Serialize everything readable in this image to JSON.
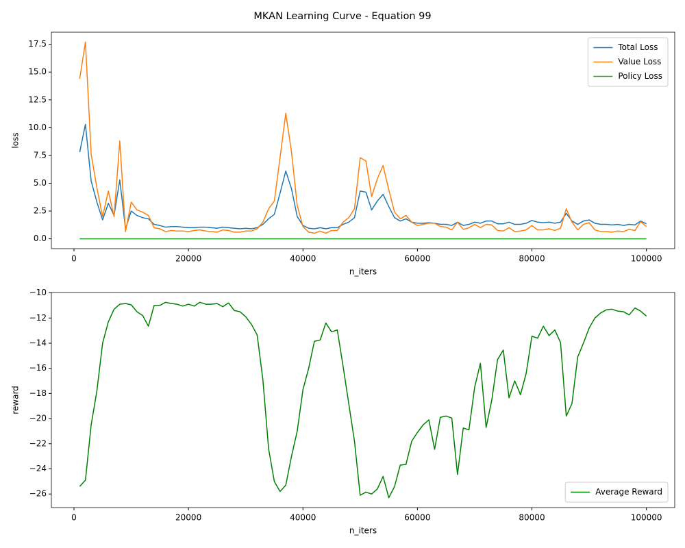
{
  "title": "MKAN Learning Curve - Equation 99",
  "chart_data": [
    {
      "type": "line",
      "xlabel": "n_iters",
      "ylabel": "loss",
      "x": [
        1000,
        2000,
        3000,
        4000,
        5000,
        6000,
        7000,
        8000,
        9000,
        10000,
        11000,
        12000,
        13000,
        14000,
        15000,
        16000,
        17000,
        18000,
        19000,
        20000,
        21000,
        22000,
        23000,
        24000,
        25000,
        26000,
        27000,
        28000,
        29000,
        30000,
        31000,
        32000,
        33000,
        34000,
        35000,
        36000,
        37000,
        38000,
        39000,
        40000,
        41000,
        42000,
        43000,
        44000,
        45000,
        46000,
        47000,
        48000,
        49000,
        50000,
        51000,
        52000,
        53000,
        54000,
        55000,
        56000,
        57000,
        58000,
        59000,
        60000,
        61000,
        62000,
        63000,
        64000,
        65000,
        66000,
        67000,
        68000,
        69000,
        70000,
        71000,
        72000,
        73000,
        74000,
        75000,
        76000,
        77000,
        78000,
        79000,
        80000,
        81000,
        82000,
        83000,
        84000,
        85000,
        86000,
        87000,
        88000,
        89000,
        90000,
        91000,
        92000,
        93000,
        94000,
        95000,
        96000,
        97000,
        98000,
        99000,
        100000
      ],
      "series": [
        {
          "name": "Total Loss",
          "color": "#1f77b4",
          "values": [
            7.8,
            10.3,
            5.2,
            3.3,
            1.7,
            3.2,
            2.1,
            5.3,
            0.9,
            2.5,
            2.1,
            1.9,
            1.8,
            1.3,
            1.2,
            1.05,
            1.1,
            1.1,
            1.05,
            1.0,
            1.0,
            1.05,
            1.05,
            1.0,
            0.95,
            1.05,
            1.0,
            0.95,
            0.9,
            0.95,
            0.9,
            1.0,
            1.3,
            1.8,
            2.2,
            4.1,
            6.1,
            4.5,
            2.0,
            1.2,
            0.95,
            0.9,
            1.0,
            0.9,
            1.0,
            1.0,
            1.3,
            1.5,
            1.9,
            4.3,
            4.2,
            2.6,
            3.4,
            4.0,
            2.9,
            1.9,
            1.6,
            1.8,
            1.5,
            1.4,
            1.4,
            1.45,
            1.4,
            1.3,
            1.3,
            1.2,
            1.5,
            1.2,
            1.3,
            1.5,
            1.4,
            1.6,
            1.6,
            1.35,
            1.35,
            1.5,
            1.3,
            1.3,
            1.4,
            1.65,
            1.5,
            1.45,
            1.5,
            1.4,
            1.5,
            2.3,
            1.6,
            1.3,
            1.6,
            1.7,
            1.4,
            1.3,
            1.3,
            1.25,
            1.3,
            1.2,
            1.3,
            1.25,
            1.6,
            1.35
          ]
        },
        {
          "name": "Value Loss",
          "color": "#ff7f0e",
          "values": [
            14.4,
            17.7,
            7.6,
            4.6,
            2.0,
            4.3,
            2.0,
            8.8,
            0.65,
            3.3,
            2.6,
            2.4,
            2.1,
            1.0,
            0.9,
            0.65,
            0.75,
            0.7,
            0.7,
            0.65,
            0.75,
            0.8,
            0.7,
            0.65,
            0.6,
            0.8,
            0.75,
            0.6,
            0.6,
            0.7,
            0.7,
            0.9,
            1.5,
            2.7,
            3.4,
            7.3,
            11.3,
            7.8,
            3.0,
            1.1,
            0.6,
            0.5,
            0.7,
            0.5,
            0.75,
            0.75,
            1.5,
            1.9,
            2.7,
            7.3,
            7.0,
            3.8,
            5.4,
            6.6,
            4.4,
            2.4,
            1.8,
            2.1,
            1.5,
            1.2,
            1.3,
            1.4,
            1.4,
            1.1,
            1.05,
            0.8,
            1.5,
            0.85,
            1.0,
            1.3,
            1.0,
            1.3,
            1.25,
            0.75,
            0.7,
            1.0,
            0.65,
            0.7,
            0.8,
            1.2,
            0.8,
            0.8,
            0.9,
            0.75,
            0.95,
            2.7,
            1.5,
            0.8,
            1.3,
            1.45,
            0.8,
            0.65,
            0.65,
            0.6,
            0.7,
            0.65,
            0.85,
            0.75,
            1.55,
            1.1
          ]
        },
        {
          "name": "Policy Loss",
          "color": "#2ca02c",
          "values": [
            0,
            0,
            0,
            0,
            0,
            0,
            0,
            0,
            0,
            0,
            0,
            0,
            0,
            0,
            0,
            0,
            0,
            0,
            0,
            0,
            0,
            0,
            0,
            0,
            0,
            0,
            0,
            0,
            0,
            0,
            0,
            0,
            0,
            0,
            0,
            0,
            0,
            0,
            0,
            0,
            0,
            0,
            0,
            0,
            0,
            0,
            0,
            0,
            0,
            0,
            0,
            0,
            0,
            0,
            0,
            0,
            0,
            0,
            0,
            0,
            0,
            0,
            0,
            0,
            0,
            0,
            0,
            0,
            0,
            0,
            0,
            0,
            0,
            0,
            0,
            0,
            0,
            0,
            0,
            0,
            0,
            0,
            0,
            0,
            0,
            0,
            0,
            0,
            0,
            0,
            0,
            0,
            0,
            0,
            0,
            0,
            0,
            0,
            0,
            0
          ]
        }
      ],
      "xlim": [
        -3950,
        104950
      ],
      "xticks": [
        0,
        20000,
        40000,
        60000,
        80000,
        100000
      ],
      "ylim": [
        -0.885,
        18.585
      ],
      "yticks": [
        {
          "value": 0,
          "label": "0.0"
        },
        2.5,
        {
          "value": 5,
          "label": "5.0"
        },
        7.5,
        {
          "value": 10,
          "label": "10.0"
        },
        12.5,
        {
          "value": 15,
          "label": "15.0"
        },
        17.5
      ],
      "legend": "upper right",
      "grid": false
    },
    {
      "type": "line",
      "xlabel": "n_iters",
      "ylabel": "reward",
      "x": [
        1000,
        2000,
        3000,
        4000,
        5000,
        6000,
        7000,
        8000,
        9000,
        10000,
        11000,
        12000,
        13000,
        14000,
        15000,
        16000,
        17000,
        18000,
        19000,
        20000,
        21000,
        22000,
        23000,
        24000,
        25000,
        26000,
        27000,
        28000,
        29000,
        30000,
        31000,
        32000,
        33000,
        34000,
        35000,
        36000,
        37000,
        38000,
        39000,
        40000,
        41000,
        42000,
        43000,
        44000,
        45000,
        46000,
        47000,
        48000,
        49000,
        50000,
        51000,
        52000,
        53000,
        54000,
        55000,
        56000,
        57000,
        58000,
        59000,
        60000,
        61000,
        62000,
        63000,
        64000,
        65000,
        66000,
        67000,
        68000,
        69000,
        70000,
        71000,
        72000,
        73000,
        74000,
        75000,
        76000,
        77000,
        78000,
        79000,
        80000,
        81000,
        82000,
        83000,
        84000,
        85000,
        86000,
        87000,
        88000,
        89000,
        90000,
        91000,
        92000,
        93000,
        94000,
        95000,
        96000,
        97000,
        98000,
        99000,
        100000
      ],
      "series": [
        {
          "name": "Average Reward",
          "color": "#008000",
          "values": [
            -25.4,
            -24.9,
            -20.5,
            -17.8,
            -14.0,
            -12.3,
            -11.3,
            -10.9,
            -10.85,
            -10.95,
            -11.5,
            -11.8,
            -12.65,
            -11.0,
            -11.0,
            -10.75,
            -10.85,
            -10.9,
            -11.05,
            -10.9,
            -11.05,
            -10.75,
            -10.9,
            -10.9,
            -10.85,
            -11.1,
            -10.8,
            -11.4,
            -11.5,
            -11.9,
            -12.5,
            -13.35,
            -16.9,
            -22.4,
            -25.0,
            -25.8,
            -25.3,
            -23.0,
            -21.0,
            -17.7,
            -16.0,
            -13.85,
            -13.75,
            -12.4,
            -13.1,
            -12.95,
            -15.8,
            -18.8,
            -21.8,
            -26.1,
            -25.85,
            -26.0,
            -25.6,
            -24.6,
            -26.3,
            -25.4,
            -23.7,
            -23.65,
            -21.8,
            -21.1,
            -20.5,
            -20.1,
            -22.45,
            -19.9,
            -19.8,
            -19.95,
            -24.45,
            -20.75,
            -20.9,
            -17.5,
            -15.6,
            -20.7,
            -18.5,
            -15.3,
            -14.55,
            -18.35,
            -17.0,
            -18.1,
            -16.4,
            -13.45,
            -13.6,
            -12.65,
            -13.4,
            -12.95,
            -13.95,
            -19.8,
            -18.8,
            -15.1,
            -14.0,
            -12.8,
            -12.0,
            -11.6,
            -11.35,
            -11.3,
            -11.45,
            -11.5,
            -11.75,
            -11.2,
            -11.45,
            -11.85
          ]
        }
      ],
      "xlim": [
        -3950,
        104950
      ],
      "xticks": [
        0,
        20000,
        40000,
        60000,
        80000,
        100000
      ],
      "ylim": [
        -27.08,
        -9.97
      ],
      "yticks": [
        {
          "value": -26,
          "label": "−26"
        },
        {
          "value": -24,
          "label": "−24"
        },
        {
          "value": -22,
          "label": "−22"
        },
        {
          "value": -20,
          "label": "−20"
        },
        {
          "value": -18,
          "label": "−18"
        },
        {
          "value": -16,
          "label": "−16"
        },
        {
          "value": -14,
          "label": "−14"
        },
        {
          "value": -12,
          "label": "−12"
        },
        {
          "value": -10,
          "label": "−10"
        }
      ],
      "legend": "lower right",
      "grid": false
    }
  ]
}
